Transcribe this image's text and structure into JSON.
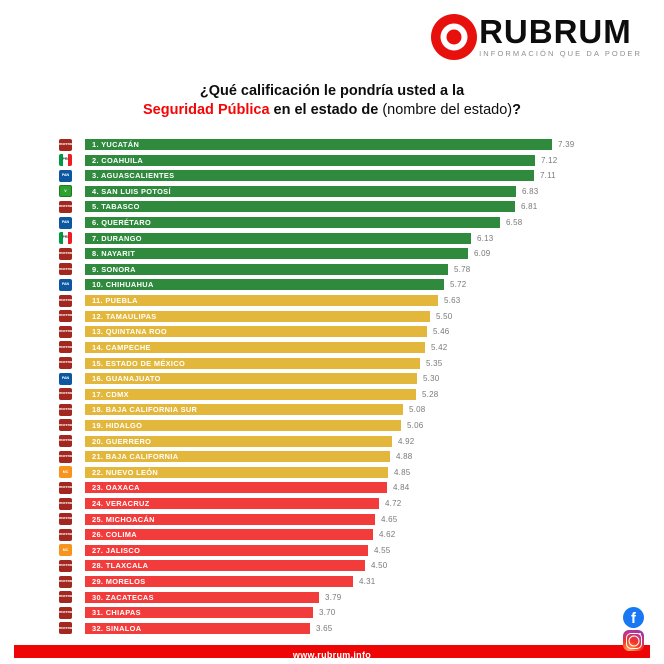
{
  "logo": {
    "brand": "RUBRUM",
    "tagline": "INFORMACIÓN QUE DA PODER",
    "brand_color": "#e8100c"
  },
  "title": {
    "line1": "¿Qué calificación le pondría usted a la",
    "highlight": "Seguridad Pública",
    "middle": " en el estado de ",
    "suffix": "(nombre del estado)",
    "question_mark": "?"
  },
  "footer": {
    "url": "www.rubrum.info",
    "bar_color": "#ee0606"
  },
  "social": {
    "icons": [
      "facebook",
      "instagram"
    ]
  },
  "chart_data": {
    "type": "bar",
    "orientation": "horizontal",
    "title": "¿Qué calificación le pondría usted a la Seguridad Pública en el estado de (nombre del estado)?",
    "value_range": [
      0,
      10
    ],
    "grid": false,
    "legend": false,
    "colors": {
      "green": "#2f8a3e",
      "yellow": "#e3b73c",
      "red": "#f23b3b"
    },
    "party_colors": {
      "morena": "#a1271f",
      "pri": "#009944/#ffffff/#ee1c25",
      "pan": "#0c57a0",
      "verde": "#2fa12e",
      "mc": "#f7941d"
    },
    "party_labels": {
      "morena": "morena",
      "pri": "PRI",
      "pan": "PAN",
      "verde": "V",
      "mc": "MC"
    },
    "rows": [
      {
        "rank": 1,
        "state": "YUCATÁN",
        "value": 7.39,
        "band": "green",
        "party": "morena"
      },
      {
        "rank": 2,
        "state": "COAHUILA",
        "value": 7.12,
        "band": "green",
        "party": "pri"
      },
      {
        "rank": 3,
        "state": "AGUASCALIENTES",
        "value": 7.11,
        "band": "green",
        "party": "pan"
      },
      {
        "rank": 4,
        "state": "SAN LUIS POTOSÍ",
        "value": 6.83,
        "band": "green",
        "party": "verde"
      },
      {
        "rank": 5,
        "state": "TABASCO",
        "value": 6.81,
        "band": "green",
        "party": "morena"
      },
      {
        "rank": 6,
        "state": "QUERÉTARO",
        "value": 6.58,
        "band": "green",
        "party": "pan"
      },
      {
        "rank": 7,
        "state": "DURANGO",
        "value": 6.13,
        "band": "green",
        "party": "pri"
      },
      {
        "rank": 8,
        "state": "NAYARIT",
        "value": 6.09,
        "band": "green",
        "party": "morena"
      },
      {
        "rank": 9,
        "state": "SONORA",
        "value": 5.78,
        "band": "green",
        "party": "morena"
      },
      {
        "rank": 10,
        "state": "CHIHUAHUA",
        "value": 5.72,
        "band": "green",
        "party": "pan"
      },
      {
        "rank": 11,
        "state": "PUEBLA",
        "value": 5.63,
        "band": "yellow",
        "party": "morena"
      },
      {
        "rank": 12,
        "state": "TAMAULIPAS",
        "value": 5.5,
        "band": "yellow",
        "party": "morena"
      },
      {
        "rank": 13,
        "state": "QUINTANA ROO",
        "value": 5.46,
        "band": "yellow",
        "party": "morena"
      },
      {
        "rank": 14,
        "state": "CAMPECHE",
        "value": 5.42,
        "band": "yellow",
        "party": "morena"
      },
      {
        "rank": 15,
        "state": "ESTADO DE MÉXICO",
        "value": 5.35,
        "band": "yellow",
        "party": "morena"
      },
      {
        "rank": 16,
        "state": "GUANAJUATO",
        "value": 5.3,
        "band": "yellow",
        "party": "pan"
      },
      {
        "rank": 17,
        "state": "CDMX",
        "value": 5.28,
        "band": "yellow",
        "party": "morena"
      },
      {
        "rank": 18,
        "state": "BAJA CALIFORNIA SUR",
        "value": 5.08,
        "band": "yellow",
        "party": "morena"
      },
      {
        "rank": 19,
        "state": "HIDALGO",
        "value": 5.06,
        "band": "yellow",
        "party": "morena"
      },
      {
        "rank": 20,
        "state": "GUERRERO",
        "value": 4.92,
        "band": "yellow",
        "party": "morena"
      },
      {
        "rank": 21,
        "state": "BAJA CALIFORNIA",
        "value": 4.88,
        "band": "yellow",
        "party": "morena"
      },
      {
        "rank": 22,
        "state": "NUEVO LEÓN",
        "value": 4.85,
        "band": "yellow",
        "party": "mc"
      },
      {
        "rank": 23,
        "state": "OAXACA",
        "value": 4.84,
        "band": "red",
        "party": "morena"
      },
      {
        "rank": 24,
        "state": "VERACRUZ",
        "value": 4.72,
        "band": "red",
        "party": "morena"
      },
      {
        "rank": 25,
        "state": "MICHOACÁN",
        "value": 4.65,
        "band": "red",
        "party": "morena"
      },
      {
        "rank": 26,
        "state": "COLIMA",
        "value": 4.62,
        "band": "red",
        "party": "morena"
      },
      {
        "rank": 27,
        "state": "JALISCO",
        "value": 4.55,
        "band": "red",
        "party": "mc"
      },
      {
        "rank": 28,
        "state": "TLAXCALA",
        "value": 4.5,
        "band": "red",
        "party": "morena"
      },
      {
        "rank": 29,
        "state": "MORELOS",
        "value": 4.31,
        "band": "red",
        "party": "morena"
      },
      {
        "rank": 30,
        "state": "ZACATECAS",
        "value": 3.79,
        "band": "red",
        "party": "morena"
      },
      {
        "rank": 31,
        "state": "CHIAPAS",
        "value": 3.7,
        "band": "red",
        "party": "morena"
      },
      {
        "rank": 32,
        "state": "SINALOA",
        "value": 3.65,
        "band": "red",
        "party": "morena"
      }
    ]
  }
}
